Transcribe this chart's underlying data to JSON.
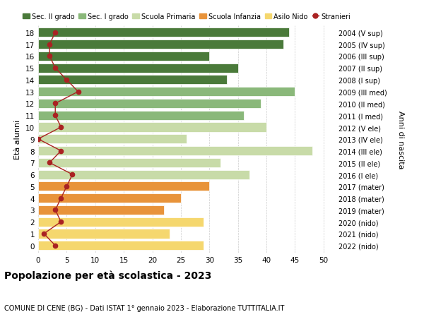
{
  "ages": [
    0,
    1,
    2,
    3,
    4,
    5,
    6,
    7,
    8,
    9,
    10,
    11,
    12,
    13,
    14,
    15,
    16,
    17,
    18
  ],
  "years": [
    "2022 (nido)",
    "2021 (nido)",
    "2020 (nido)",
    "2019 (mater)",
    "2018 (mater)",
    "2017 (mater)",
    "2016 (I ele)",
    "2015 (II ele)",
    "2014 (III ele)",
    "2013 (IV ele)",
    "2012 (V ele)",
    "2011 (I med)",
    "2010 (II med)",
    "2009 (III med)",
    "2008 (I sup)",
    "2007 (II sup)",
    "2006 (III sup)",
    "2005 (IV sup)",
    "2004 (V sup)"
  ],
  "bar_values": [
    29,
    23,
    29,
    22,
    25,
    30,
    37,
    32,
    48,
    26,
    40,
    36,
    39,
    45,
    33,
    35,
    30,
    43,
    44
  ],
  "stranieri": [
    3,
    1,
    4,
    3,
    4,
    5,
    6,
    2,
    4,
    0,
    4,
    3,
    3,
    7,
    5,
    3,
    2,
    2,
    3
  ],
  "bar_colors": [
    "#f5d76e",
    "#f5d76e",
    "#f5d76e",
    "#e8933a",
    "#e8933a",
    "#e8933a",
    "#c8dba8",
    "#c8dba8",
    "#c8dba8",
    "#c8dba8",
    "#c8dba8",
    "#8ab87a",
    "#8ab87a",
    "#8ab87a",
    "#4a7a3a",
    "#4a7a3a",
    "#4a7a3a",
    "#4a7a3a",
    "#4a7a3a"
  ],
  "legend_labels": [
    "Sec. II grado",
    "Sec. I grado",
    "Scuola Primaria",
    "Scuola Infanzia",
    "Asilo Nido",
    "Stranieri"
  ],
  "legend_colors": [
    "#4a7a3a",
    "#8ab87a",
    "#c8dba8",
    "#e8933a",
    "#f5d76e",
    "#aa2222"
  ],
  "stranieri_color": "#aa2222",
  "title": "Popolazione per età scolastica - 2023",
  "subtitle": "COMUNE DI CENE (BG) - Dati ISTAT 1° gennaio 2023 - Elaborazione TUTTITALIA.IT",
  "ylabel": "Età alunni",
  "ylabel2": "Anni di nascita",
  "xlim": [
    0,
    52
  ],
  "background_color": "#ffffff",
  "grid_color": "#cccccc",
  "bar_height": 0.78
}
